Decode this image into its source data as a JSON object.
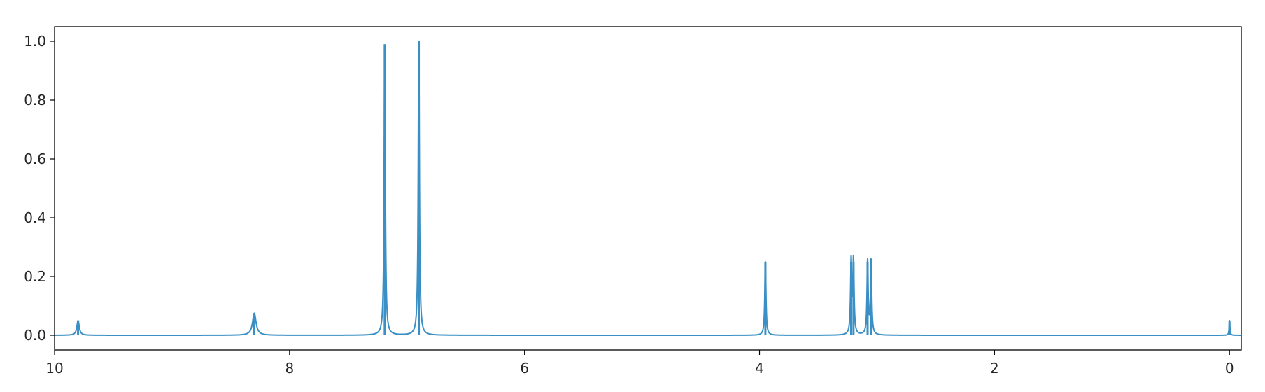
{
  "chart_data": {
    "type": "line",
    "title": "",
    "xlabel": "",
    "ylabel": "",
    "xlim": [
      10,
      -0.1
    ],
    "ylim": [
      -0.05,
      1.05
    ],
    "x_reversed": true,
    "grid": false,
    "line_color": "#3a8fc4",
    "xticks": [
      10,
      8,
      6,
      4,
      2,
      0
    ],
    "xtick_labels": [
      "10",
      "8",
      "6",
      "4",
      "2",
      "0"
    ],
    "yticks": [
      0.0,
      0.2,
      0.4,
      0.6,
      0.8,
      1.0
    ],
    "ytick_labels": [
      "0.0",
      "0.2",
      "0.4",
      "0.6",
      "0.8",
      "1.0"
    ],
    "peaks": [
      {
        "x": 9.8,
        "height": 0.05
      },
      {
        "x": 8.3,
        "height": 0.075
      },
      {
        "x": 7.19,
        "height": 0.99
      },
      {
        "x": 6.9,
        "height": 1.0
      },
      {
        "x": 3.95,
        "height": 0.25
      },
      {
        "x": 3.22,
        "height": 0.25
      },
      {
        "x": 3.2,
        "height": 0.25
      },
      {
        "x": 3.08,
        "height": 0.25
      },
      {
        "x": 3.05,
        "height": 0.25
      },
      {
        "x": 0.0,
        "height": 0.05
      }
    ]
  }
}
